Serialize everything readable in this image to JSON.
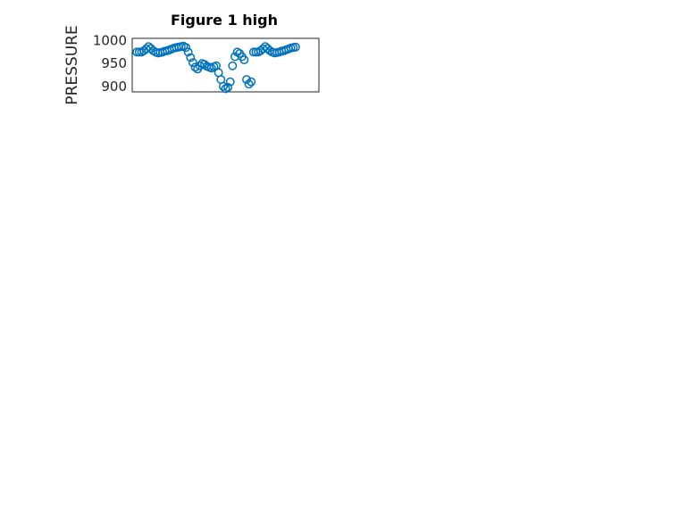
{
  "title": "Figure 1 high",
  "colors": {
    "marker": "#0072BD",
    "grid": "#d4d4d4",
    "axis": "#262626"
  },
  "chart_data": [
    {
      "type": "scatter",
      "name": "pressure",
      "ylabel": "PRESSURE",
      "ylabel_sub": null,
      "ylim": [
        888,
        1005
      ],
      "yticks": [
        900,
        950,
        1000
      ],
      "xlim": [
        0,
        4
      ],
      "show_xticks": false,
      "x": [
        0.1,
        0.15,
        0.2,
        0.25,
        0.3,
        0.35,
        0.4,
        0.45,
        0.5,
        0.55,
        0.6,
        0.65,
        0.7,
        0.75,
        0.8,
        0.85,
        0.9,
        0.95,
        1.0,
        1.05,
        1.1,
        1.15,
        1.2,
        1.25,
        1.3,
        1.35,
        1.4,
        1.45,
        1.5,
        1.55,
        1.6,
        1.65,
        1.7,
        1.75,
        1.8,
        1.85,
        1.9,
        1.95,
        2.0,
        2.05,
        2.1,
        2.15,
        2.2,
        2.25,
        2.3,
        2.35,
        2.4,
        2.45,
        2.5,
        2.55,
        2.6,
        2.65,
        2.7,
        2.75,
        2.8,
        2.85,
        2.9,
        2.95,
        3.0,
        3.05,
        3.1,
        3.15,
        3.2,
        3.25,
        3.3,
        3.35,
        3.4,
        3.45,
        3.5
      ],
      "y": [
        975,
        975,
        975,
        978,
        982,
        987,
        983,
        978,
        975,
        973,
        974,
        975,
        977,
        978,
        980,
        982,
        984,
        985,
        986,
        987,
        988,
        985,
        975,
        963,
        952,
        942,
        938,
        945,
        950,
        948,
        944,
        942,
        940,
        943,
        945,
        930,
        915,
        900,
        895,
        898,
        910,
        945,
        965,
        975,
        972,
        965,
        958,
        915,
        905,
        910,
        975,
        975,
        975,
        978,
        982,
        987,
        983,
        978,
        975,
        973,
        974,
        975,
        977,
        978,
        980,
        982,
        984,
        985,
        986
      ],
      "note": "stored per-sample pressure values"
    }
  ]
}
